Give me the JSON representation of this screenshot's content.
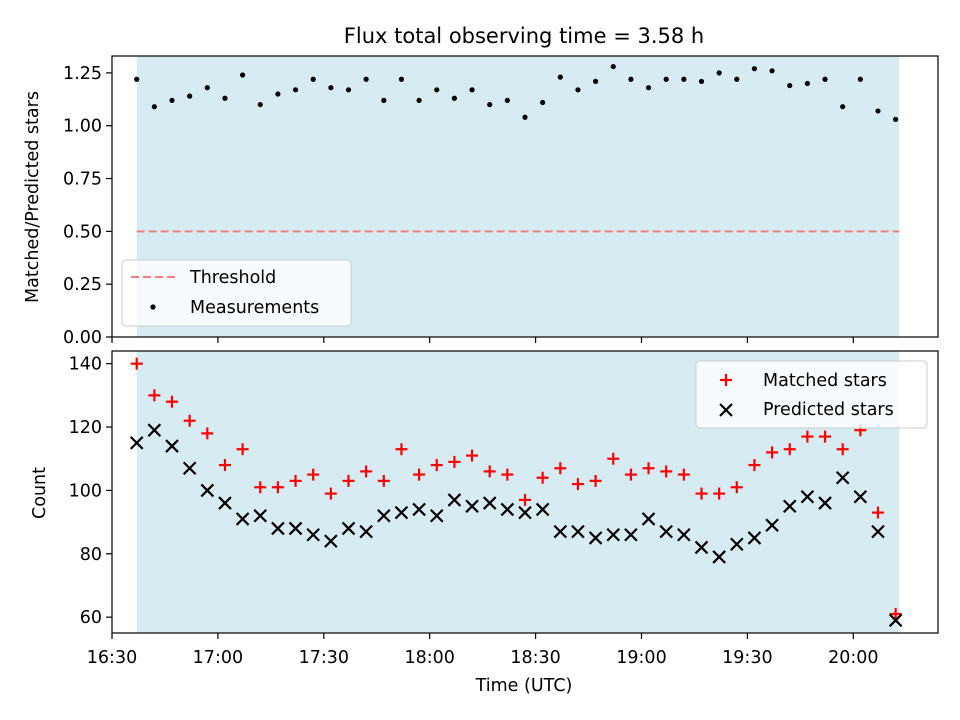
{
  "figure": {
    "title": "Flux total observing time = 3.58 h",
    "xlabel": "Time (UTC)"
  },
  "colors": {
    "shade": "#add8e6",
    "threshold": "#f08080",
    "matched": "#ff0000",
    "predicted": "#000000",
    "measurement": "#000000"
  },
  "chart_data": [
    {
      "type": "scatter",
      "panel": "top",
      "ylabel": "Matched/Predicted stars",
      "x_time_range": [
        "16:30",
        "20:24"
      ],
      "ylim": [
        0,
        1.33
      ],
      "yticks": [
        0.0,
        0.25,
        0.5,
        0.75,
        1.0,
        1.25
      ],
      "ytick_labels": [
        "0.00",
        "0.25",
        "0.50",
        "0.75",
        "1.00",
        "1.25"
      ],
      "shaded_span": [
        "16:37",
        "20:13"
      ],
      "grid": false,
      "legend_position": "lower-left",
      "threshold": {
        "name": "Threshold",
        "y": 0.5,
        "style": "dashed"
      },
      "series": [
        {
          "name": "Measurements",
          "marker": "dot",
          "x": [
            "16:37",
            "16:42",
            "16:47",
            "16:52",
            "16:57",
            "17:02",
            "17:07",
            "17:12",
            "17:17",
            "17:22",
            "17:27",
            "17:32",
            "17:37",
            "17:42",
            "17:47",
            "17:52",
            "17:57",
            "18:02",
            "18:07",
            "18:12",
            "18:17",
            "18:22",
            "18:27",
            "18:32",
            "18:37",
            "18:42",
            "18:47",
            "18:52",
            "18:57",
            "19:02",
            "19:07",
            "19:12",
            "19:17",
            "19:22",
            "19:27",
            "19:32",
            "19:37",
            "19:42",
            "19:47",
            "19:52",
            "19:57",
            "20:02",
            "20:07",
            "20:12"
          ],
          "y": [
            1.22,
            1.09,
            1.12,
            1.14,
            1.18,
            1.13,
            1.24,
            1.1,
            1.15,
            1.17,
            1.22,
            1.18,
            1.17,
            1.22,
            1.12,
            1.22,
            1.12,
            1.17,
            1.13,
            1.17,
            1.1,
            1.12,
            1.04,
            1.11,
            1.23,
            1.17,
            1.21,
            1.28,
            1.22,
            1.18,
            1.22,
            1.22,
            1.21,
            1.25,
            1.22,
            1.27,
            1.26,
            1.19,
            1.2,
            1.22,
            1.09,
            1.22,
            1.07,
            1.03
          ]
        }
      ]
    },
    {
      "type": "scatter",
      "panel": "bottom",
      "ylabel": "Count",
      "x_time_range": [
        "16:30",
        "20:24"
      ],
      "ylim": [
        55,
        144
      ],
      "yticks": [
        60,
        80,
        100,
        120,
        140
      ],
      "ytick_labels": [
        "60",
        "80",
        "100",
        "120",
        "140"
      ],
      "xticks": [
        "16:30",
        "17:00",
        "17:30",
        "18:00",
        "18:30",
        "19:00",
        "19:30",
        "20:00"
      ],
      "xtick_labels": [
        "16:30",
        "17:00",
        "17:30",
        "18:00",
        "18:30",
        "19:00",
        "19:30",
        "20:00"
      ],
      "shaded_span": [
        "16:37",
        "20:13"
      ],
      "grid": false,
      "legend_position": "upper-right",
      "series": [
        {
          "name": "Matched stars",
          "marker": "plus",
          "x": [
            "16:37",
            "16:42",
            "16:47",
            "16:52",
            "16:57",
            "17:02",
            "17:07",
            "17:12",
            "17:17",
            "17:22",
            "17:27",
            "17:32",
            "17:37",
            "17:42",
            "17:47",
            "17:52",
            "17:57",
            "18:02",
            "18:07",
            "18:12",
            "18:17",
            "18:22",
            "18:27",
            "18:32",
            "18:37",
            "18:42",
            "18:47",
            "18:52",
            "18:57",
            "19:02",
            "19:07",
            "19:12",
            "19:17",
            "19:22",
            "19:27",
            "19:32",
            "19:37",
            "19:42",
            "19:47",
            "19:52",
            "19:57",
            "20:02",
            "20:07",
            "20:12"
          ],
          "y": [
            140,
            130,
            128,
            122,
            118,
            108,
            113,
            101,
            101,
            103,
            105,
            99,
            103,
            106,
            103,
            113,
            105,
            108,
            109,
            111,
            106,
            105,
            97,
            104,
            107,
            102,
            103,
            110,
            105,
            107,
            106,
            105,
            99,
            99,
            101,
            108,
            112,
            113,
            117,
            117,
            113,
            119,
            93,
            61
          ]
        },
        {
          "name": "Predicted stars",
          "marker": "x",
          "x": [
            "16:37",
            "16:42",
            "16:47",
            "16:52",
            "16:57",
            "17:02",
            "17:07",
            "17:12",
            "17:17",
            "17:22",
            "17:27",
            "17:32",
            "17:37",
            "17:42",
            "17:47",
            "17:52",
            "17:57",
            "18:02",
            "18:07",
            "18:12",
            "18:17",
            "18:22",
            "18:27",
            "18:32",
            "18:37",
            "18:42",
            "18:47",
            "18:52",
            "18:57",
            "19:02",
            "19:07",
            "19:12",
            "19:17",
            "19:22",
            "19:27",
            "19:32",
            "19:37",
            "19:42",
            "19:47",
            "19:52",
            "19:57",
            "20:02",
            "20:07",
            "20:12"
          ],
          "y": [
            115,
            119,
            114,
            107,
            100,
            96,
            91,
            92,
            88,
            88,
            86,
            84,
            88,
            87,
            92,
            93,
            94,
            92,
            97,
            95,
            96,
            94,
            93,
            94,
            87,
            87,
            85,
            86,
            86,
            91,
            87,
            86,
            82,
            79,
            83,
            85,
            89,
            95,
            98,
            96,
            104,
            98,
            87,
            59
          ]
        }
      ]
    }
  ]
}
